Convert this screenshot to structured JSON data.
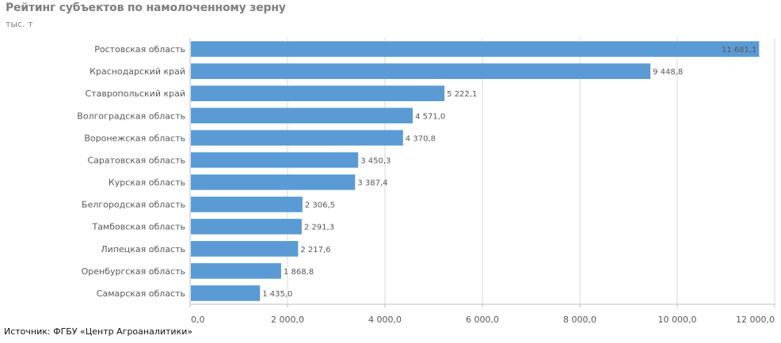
{
  "header": {
    "title": "Рейтинг субъектов по намолоченному зерну",
    "unit": "тыс. т"
  },
  "footer": {
    "source": "Источник: ФГБУ «Центр Агроаналитики»"
  },
  "colors": {
    "bar": "#5b9bd5",
    "grid": "#d9d9d9",
    "axis": "#bfbfbf"
  },
  "chart_data": {
    "type": "bar",
    "orientation": "horizontal",
    "categories": [
      "Ростовская область",
      "Краснодарский край",
      "Ставропольский край",
      "Волгоградская область",
      "Воронежская область",
      "Саратовская область",
      "Курская область",
      "Белгородская область",
      "Тамбовская область",
      "Липецкая область",
      "Оренбургская область",
      "Самарская область"
    ],
    "values": [
      11681.1,
      9448.8,
      5222.1,
      4571.0,
      4370.8,
      3450.3,
      3387.4,
      2306.5,
      2291.3,
      2217.6,
      1868.8,
      1435.0
    ],
    "value_labels": [
      "11 681,1",
      "9 448,8",
      "5 222,1",
      "4 571,0",
      "4 370,8",
      "3 450,3",
      "3 387,4",
      "2 306,5",
      "2 291,3",
      "2 217,6",
      "1 868,8",
      "1 435,0"
    ],
    "x_ticks": [
      0,
      2000,
      4000,
      6000,
      8000,
      10000,
      12000
    ],
    "x_tick_labels": [
      "0,0",
      "2 000,0",
      "4 000,0",
      "6 000,0",
      "8 000,0",
      "10 000,0",
      "12 000,0"
    ],
    "xlim": [
      0,
      12000
    ],
    "title": "Рейтинг субъектов по намолоченному зерну",
    "ylabel": "тыс. т",
    "grid": true,
    "legend": "none"
  }
}
